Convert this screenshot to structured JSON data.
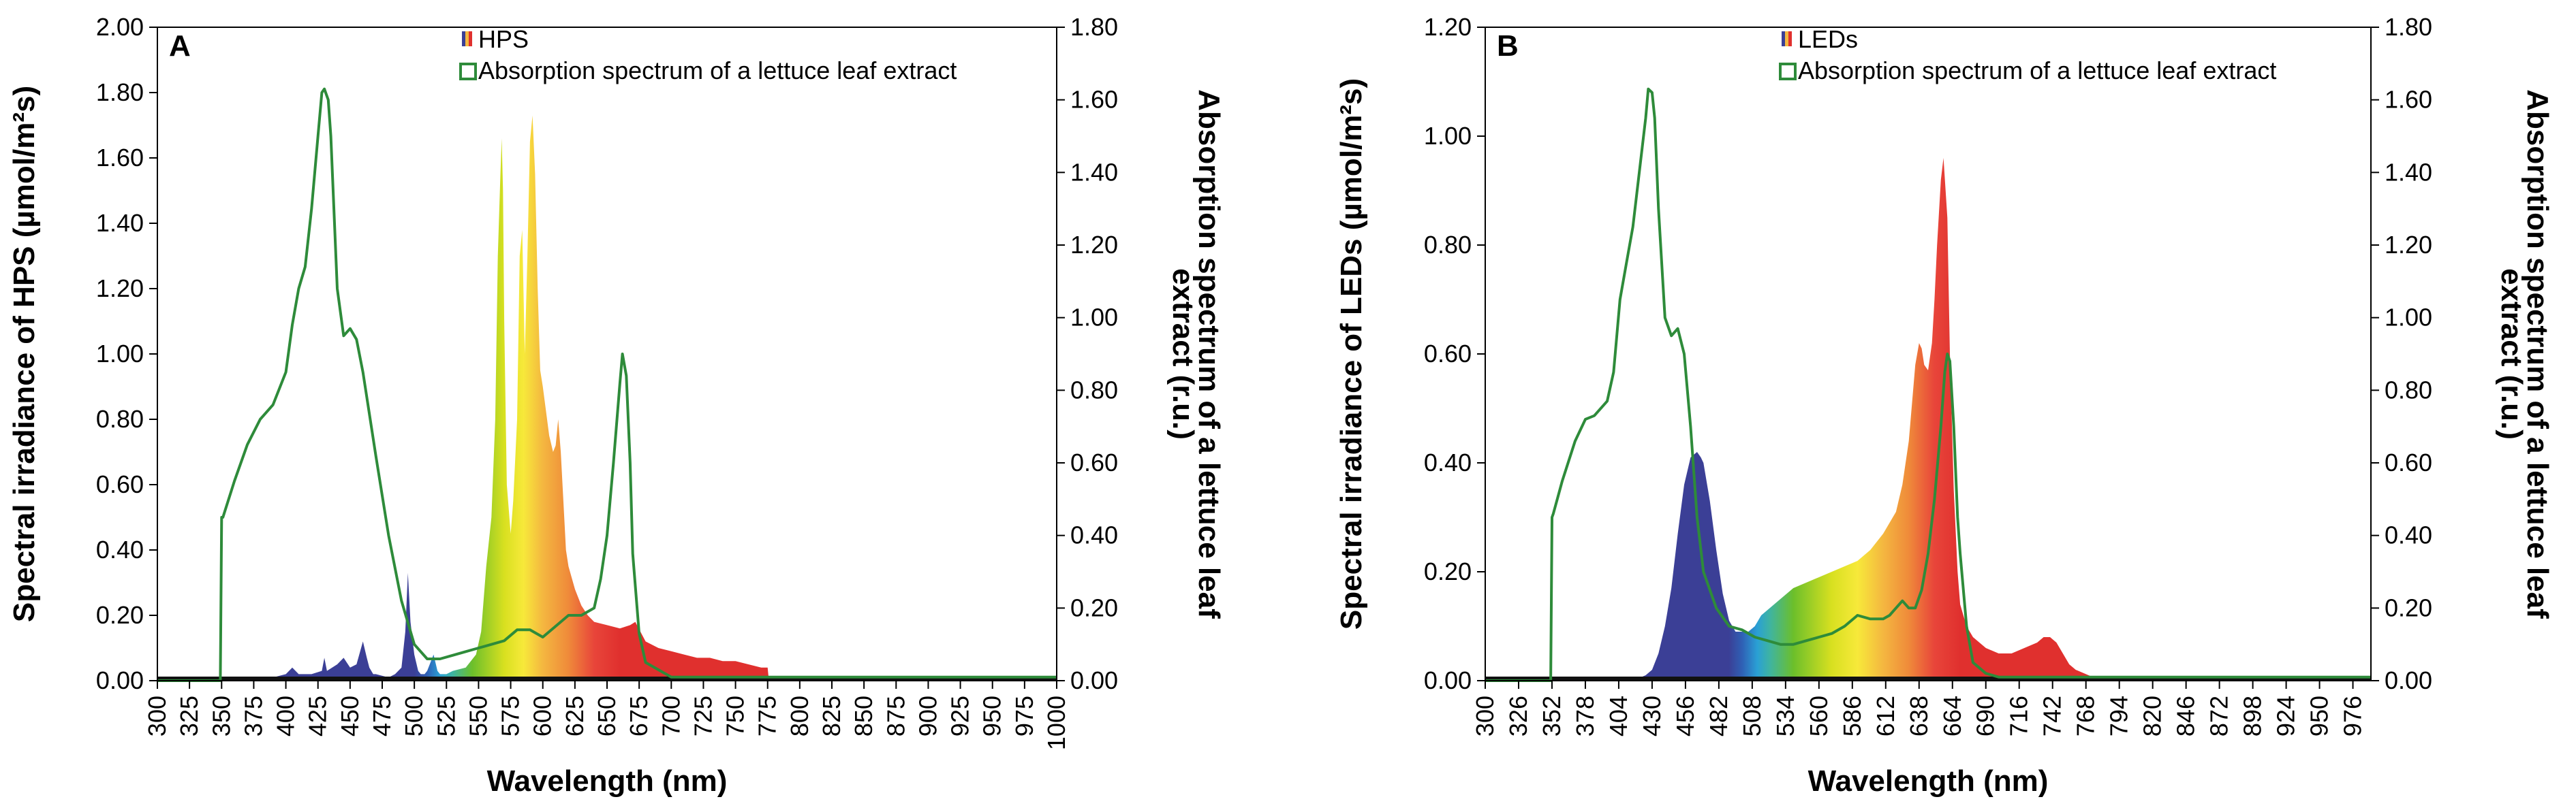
{
  "chart_data": [
    {
      "type": "area",
      "panel": "A",
      "xlabel": "Wavelength (nm)",
      "ylabel": "Spectral irradiance of HPS (µmol/m²s)",
      "y2label_lines": [
        "Absorption spectrum of a lettuce leaf",
        "extract (r.u.)"
      ],
      "xlim": [
        300,
        1000
      ],
      "ylim": [
        0,
        2.0
      ],
      "y2lim": [
        0,
        1.8
      ],
      "x_ticks": [
        "300",
        "325",
        "350",
        "375",
        "400",
        "425",
        "450",
        "475",
        "500",
        "525",
        "550",
        "575",
        "600",
        "625",
        "650",
        "675",
        "700",
        "725",
        "750",
        "775",
        "800",
        "825",
        "850",
        "875",
        "900",
        "925",
        "950",
        "975",
        "1000"
      ],
      "y_ticks": [
        "0.00",
        "0.20",
        "0.40",
        "0.60",
        "0.80",
        "1.00",
        "1.20",
        "1.40",
        "1.60",
        "1.80",
        "2.00"
      ],
      "y2_ticks": [
        "0.00",
        "0.20",
        "0.40",
        "0.60",
        "0.80",
        "1.00",
        "1.20",
        "1.40",
        "1.60",
        "1.80"
      ],
      "legend": [
        {
          "label": "HPS",
          "swatch": "spectrum"
        },
        {
          "label": "Absorption spectrum of a lettuce leaf extract",
          "swatch": "line",
          "color": "#2e8b3a"
        }
      ],
      "series": [
        {
          "name": "HPS",
          "axis": "left",
          "style": "spectral-fill",
          "x": [
            300,
            380,
            390,
            400,
            405,
            410,
            420,
            428,
            430,
            432,
            440,
            445,
            450,
            455,
            460,
            463,
            465,
            468,
            470,
            480,
            485,
            490,
            493,
            495,
            497,
            500,
            503,
            505,
            508,
            510,
            515,
            518,
            520,
            522,
            525,
            530,
            540,
            548,
            552,
            556,
            560,
            563,
            565,
            567,
            568,
            569,
            570,
            572,
            575,
            577,
            580,
            582,
            584,
            586,
            588,
            590,
            592,
            594,
            596,
            598,
            600,
            605,
            608,
            610,
            612,
            614,
            616,
            618,
            620,
            625,
            630,
            635,
            640,
            650,
            660,
            668,
            672,
            676,
            680,
            690,
            700,
            710,
            720,
            730,
            740,
            750,
            760,
            770,
            775,
            776,
            780,
            800,
            1000
          ],
          "values": [
            0,
            0,
            0.01,
            0.02,
            0.04,
            0.02,
            0.02,
            0.03,
            0.07,
            0.03,
            0.05,
            0.07,
            0.04,
            0.05,
            0.12,
            0.07,
            0.04,
            0.02,
            0.02,
            0.01,
            0.02,
            0.04,
            0.15,
            0.33,
            0.18,
            0.08,
            0.03,
            0.02,
            0.02,
            0.03,
            0.08,
            0.03,
            0.02,
            0.02,
            0.02,
            0.03,
            0.04,
            0.08,
            0.15,
            0.35,
            0.5,
            0.8,
            1.3,
            1.55,
            1.66,
            1.5,
            1.1,
            0.6,
            0.45,
            0.55,
            0.8,
            1.3,
            1.38,
            1.0,
            1.3,
            1.65,
            1.73,
            1.55,
            1.2,
            0.95,
            0.9,
            0.75,
            0.7,
            0.72,
            0.8,
            0.7,
            0.55,
            0.4,
            0.35,
            0.28,
            0.23,
            0.2,
            0.18,
            0.17,
            0.16,
            0.17,
            0.18,
            0.15,
            0.12,
            0.1,
            0.09,
            0.08,
            0.07,
            0.07,
            0.06,
            0.06,
            0.05,
            0.04,
            0.04,
            0,
            0,
            0,
            0
          ]
        },
        {
          "name": "Absorption spectrum of a lettuce leaf extract",
          "axis": "right",
          "style": "line",
          "color": "#2e8b3a",
          "x": [
            300,
            349,
            350,
            351,
            360,
            370,
            380,
            390,
            400,
            405,
            410,
            415,
            420,
            425,
            428,
            430,
            433,
            435,
            440,
            445,
            450,
            455,
            460,
            470,
            480,
            490,
            500,
            510,
            520,
            530,
            540,
            550,
            560,
            570,
            580,
            590,
            600,
            610,
            620,
            630,
            640,
            645,
            650,
            655,
            660,
            662,
            665,
            668,
            670,
            675,
            680,
            700,
            800,
            1000
          ],
          "values": [
            0,
            0,
            0.45,
            0.45,
            0.55,
            0.65,
            0.72,
            0.76,
            0.85,
            0.98,
            1.08,
            1.14,
            1.3,
            1.5,
            1.62,
            1.63,
            1.6,
            1.5,
            1.08,
            0.95,
            0.97,
            0.94,
            0.85,
            0.62,
            0.4,
            0.22,
            0.1,
            0.06,
            0.06,
            0.07,
            0.08,
            0.09,
            0.1,
            0.11,
            0.14,
            0.14,
            0.12,
            0.15,
            0.18,
            0.18,
            0.2,
            0.28,
            0.4,
            0.6,
            0.82,
            0.9,
            0.84,
            0.6,
            0.35,
            0.13,
            0.05,
            0.01,
            0.01,
            0.01
          ]
        }
      ]
    },
    {
      "type": "area",
      "panel": "B",
      "xlabel": "Wavelength (nm)",
      "ylabel": "Spectral irradiance of LEDs (µmol/m²s)",
      "y2label_lines": [
        "Absorption spectrum of a lettuce leaf",
        "extract (r.u.)"
      ],
      "xlim": [
        300,
        990
      ],
      "ylim": [
        0,
        1.2
      ],
      "y2lim": [
        0,
        1.8
      ],
      "x_ticks": [
        "300",
        "326",
        "352",
        "378",
        "404",
        "430",
        "456",
        "482",
        "508",
        "534",
        "560",
        "586",
        "612",
        "638",
        "664",
        "690",
        "716",
        "742",
        "768",
        "794",
        "820",
        "846",
        "872",
        "898",
        "924",
        "950",
        "976"
      ],
      "y_ticks": [
        "0.00",
        "0.20",
        "0.40",
        "0.60",
        "0.80",
        "1.00",
        "1.20"
      ],
      "y2_ticks": [
        "0.00",
        "0.20",
        "0.40",
        "0.60",
        "0.80",
        "1.00",
        "1.20",
        "1.40",
        "1.60",
        "1.80"
      ],
      "legend": [
        {
          "label": "LEDs",
          "swatch": "spectrum"
        },
        {
          "label": "Absorption spectrum of a lettuce leaf extract",
          "swatch": "line",
          "color": "#2e8b3a"
        }
      ],
      "series": [
        {
          "name": "LEDs",
          "axis": "left",
          "style": "spectral-fill",
          "x": [
            300,
            415,
            425,
            430,
            435,
            440,
            445,
            450,
            455,
            460,
            465,
            468,
            470,
            475,
            480,
            485,
            490,
            495,
            500,
            505,
            510,
            515,
            520,
            530,
            540,
            550,
            560,
            570,
            580,
            590,
            600,
            610,
            620,
            625,
            630,
            635,
            638,
            640,
            642,
            645,
            648,
            650,
            652,
            655,
            657,
            660,
            662,
            665,
            668,
            670,
            675,
            680,
            690,
            700,
            710,
            720,
            730,
            735,
            740,
            745,
            750,
            755,
            760,
            770,
            780,
            990
          ],
          "values": [
            0,
            0,
            0.01,
            0.02,
            0.05,
            0.1,
            0.17,
            0.27,
            0.36,
            0.41,
            0.42,
            0.41,
            0.4,
            0.33,
            0.24,
            0.16,
            0.11,
            0.09,
            0.09,
            0.09,
            0.1,
            0.12,
            0.13,
            0.15,
            0.17,
            0.18,
            0.19,
            0.2,
            0.21,
            0.22,
            0.24,
            0.27,
            0.31,
            0.36,
            0.44,
            0.58,
            0.62,
            0.61,
            0.58,
            0.57,
            0.62,
            0.7,
            0.8,
            0.92,
            0.96,
            0.85,
            0.6,
            0.35,
            0.2,
            0.14,
            0.1,
            0.08,
            0.06,
            0.05,
            0.05,
            0.06,
            0.07,
            0.08,
            0.08,
            0.07,
            0.05,
            0.03,
            0.02,
            0.01,
            0,
            0
          ]
        },
        {
          "name": "Absorption spectrum of a lettuce leaf extract",
          "axis": "right",
          "style": "line",
          "color": "#2e8b3a",
          "x": [
            300,
            351,
            352,
            353,
            360,
            370,
            378,
            385,
            395,
            400,
            405,
            410,
            415,
            420,
            425,
            427,
            430,
            432,
            435,
            440,
            445,
            450,
            455,
            460,
            465,
            470,
            480,
            490,
            500,
            510,
            520,
            530,
            540,
            550,
            560,
            570,
            580,
            590,
            600,
            610,
            615,
            620,
            625,
            630,
            635,
            640,
            645,
            650,
            655,
            658,
            660,
            662,
            665,
            668,
            670,
            675,
            680,
            690,
            700,
            800,
            990
          ],
          "values": [
            0,
            0,
            0.45,
            0.46,
            0.55,
            0.66,
            0.72,
            0.73,
            0.77,
            0.85,
            1.05,
            1.15,
            1.25,
            1.4,
            1.55,
            1.63,
            1.62,
            1.55,
            1.3,
            1.0,
            0.95,
            0.97,
            0.9,
            0.7,
            0.45,
            0.3,
            0.2,
            0.15,
            0.14,
            0.12,
            0.11,
            0.1,
            0.1,
            0.11,
            0.12,
            0.13,
            0.15,
            0.18,
            0.17,
            0.17,
            0.18,
            0.2,
            0.22,
            0.2,
            0.2,
            0.25,
            0.35,
            0.5,
            0.7,
            0.85,
            0.9,
            0.88,
            0.7,
            0.45,
            0.35,
            0.15,
            0.05,
            0.02,
            0.01,
            0.01,
            0.01
          ]
        }
      ]
    }
  ]
}
